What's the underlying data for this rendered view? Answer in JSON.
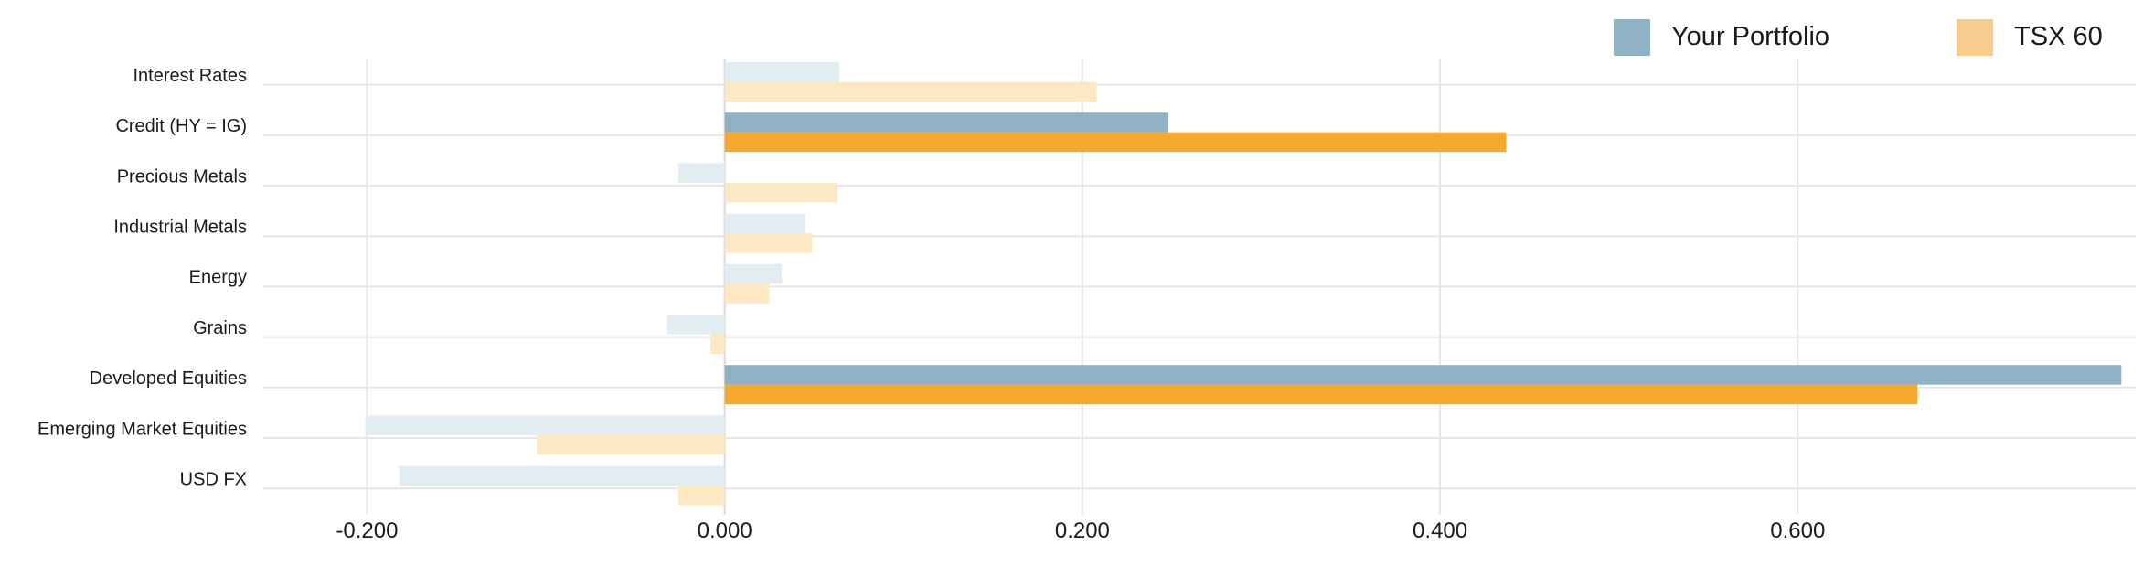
{
  "chart_data": {
    "type": "bar",
    "orientation": "horizontal",
    "categories": [
      "Interest Rates",
      "Credit (HY = IG)",
      "Precious Metals",
      "Industrial Metals",
      "Energy",
      "Grains",
      "Developed Equities",
      "Emerging Market Equities",
      "USD FX"
    ],
    "series": [
      {
        "name": "Your Portfolio",
        "color": "#8fb3c4",
        "faded_color": "#e2edf2",
        "values": [
          0.064,
          0.248,
          -0.026,
          0.045,
          0.032,
          -0.032,
          0.781,
          -0.201,
          -0.182
        ]
      },
      {
        "name": "TSX 60",
        "color": "#f4a82d",
        "faded_color": "#fde8c4",
        "values": [
          0.208,
          0.437,
          0.063,
          0.049,
          0.025,
          -0.008,
          0.667,
          -0.105,
          -0.026
        ]
      }
    ],
    "highlighted_categories": [
      "Credit (HY = IG)",
      "Developed Equities"
    ],
    "x_ticks": [
      -0.2,
      0.0,
      0.2,
      0.4,
      0.6
    ],
    "x_tick_labels": [
      "-0.200",
      "0.000",
      "0.200",
      "0.400",
      "0.600"
    ],
    "xlim": [
      -0.258,
      0.789
    ],
    "title": "",
    "xlabel": "",
    "ylabel": "",
    "grid": true,
    "legend": {
      "position": "top-right",
      "items": [
        {
          "label": "Your Portfolio",
          "color": "#8fb3c4"
        },
        {
          "label": "TSX 60",
          "color": "#f8cb8e"
        }
      ]
    },
    "grid_color": "#e6e6e6"
  }
}
